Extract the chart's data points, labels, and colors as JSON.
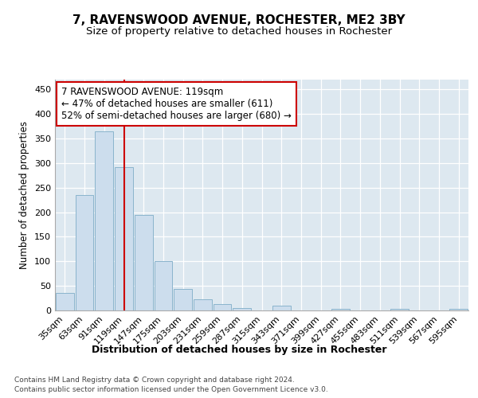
{
  "title": "7, RAVENSWOOD AVENUE, ROCHESTER, ME2 3BY",
  "subtitle": "Size of property relative to detached houses in Rochester",
  "xlabel": "Distribution of detached houses by size in Rochester",
  "ylabel": "Number of detached properties",
  "categories": [
    "35sqm",
    "63sqm",
    "91sqm",
    "119sqm",
    "147sqm",
    "175sqm",
    "203sqm",
    "231sqm",
    "259sqm",
    "287sqm",
    "315sqm",
    "343sqm",
    "371sqm",
    "399sqm",
    "427sqm",
    "455sqm",
    "483sqm",
    "511sqm",
    "539sqm",
    "567sqm",
    "595sqm"
  ],
  "values": [
    35,
    235,
    365,
    292,
    195,
    101,
    43,
    22,
    13,
    5,
    0,
    10,
    0,
    0,
    4,
    0,
    0,
    3,
    0,
    0,
    3
  ],
  "bar_color": "#ccdded",
  "bar_edge_color": "#8ab4cc",
  "vline_x_index": 3,
  "vline_color": "#cc0000",
  "annotation_text": "7 RAVENSWOOD AVENUE: 119sqm\n← 47% of detached houses are smaller (611)\n52% of semi-detached houses are larger (680) →",
  "annotation_box_color": "#ffffff",
  "annotation_box_edge": "#cc0000",
  "ylim": [
    0,
    470
  ],
  "yticks": [
    0,
    50,
    100,
    150,
    200,
    250,
    300,
    350,
    400,
    450
  ],
  "background_color": "#dde8f0",
  "footer_line1": "Contains HM Land Registry data © Crown copyright and database right 2024.",
  "footer_line2": "Contains public sector information licensed under the Open Government Licence v3.0.",
  "title_fontsize": 11,
  "subtitle_fontsize": 9.5,
  "xlabel_fontsize": 9,
  "ylabel_fontsize": 8.5,
  "tick_fontsize": 8,
  "annotation_fontsize": 8.5,
  "footer_fontsize": 6.5
}
